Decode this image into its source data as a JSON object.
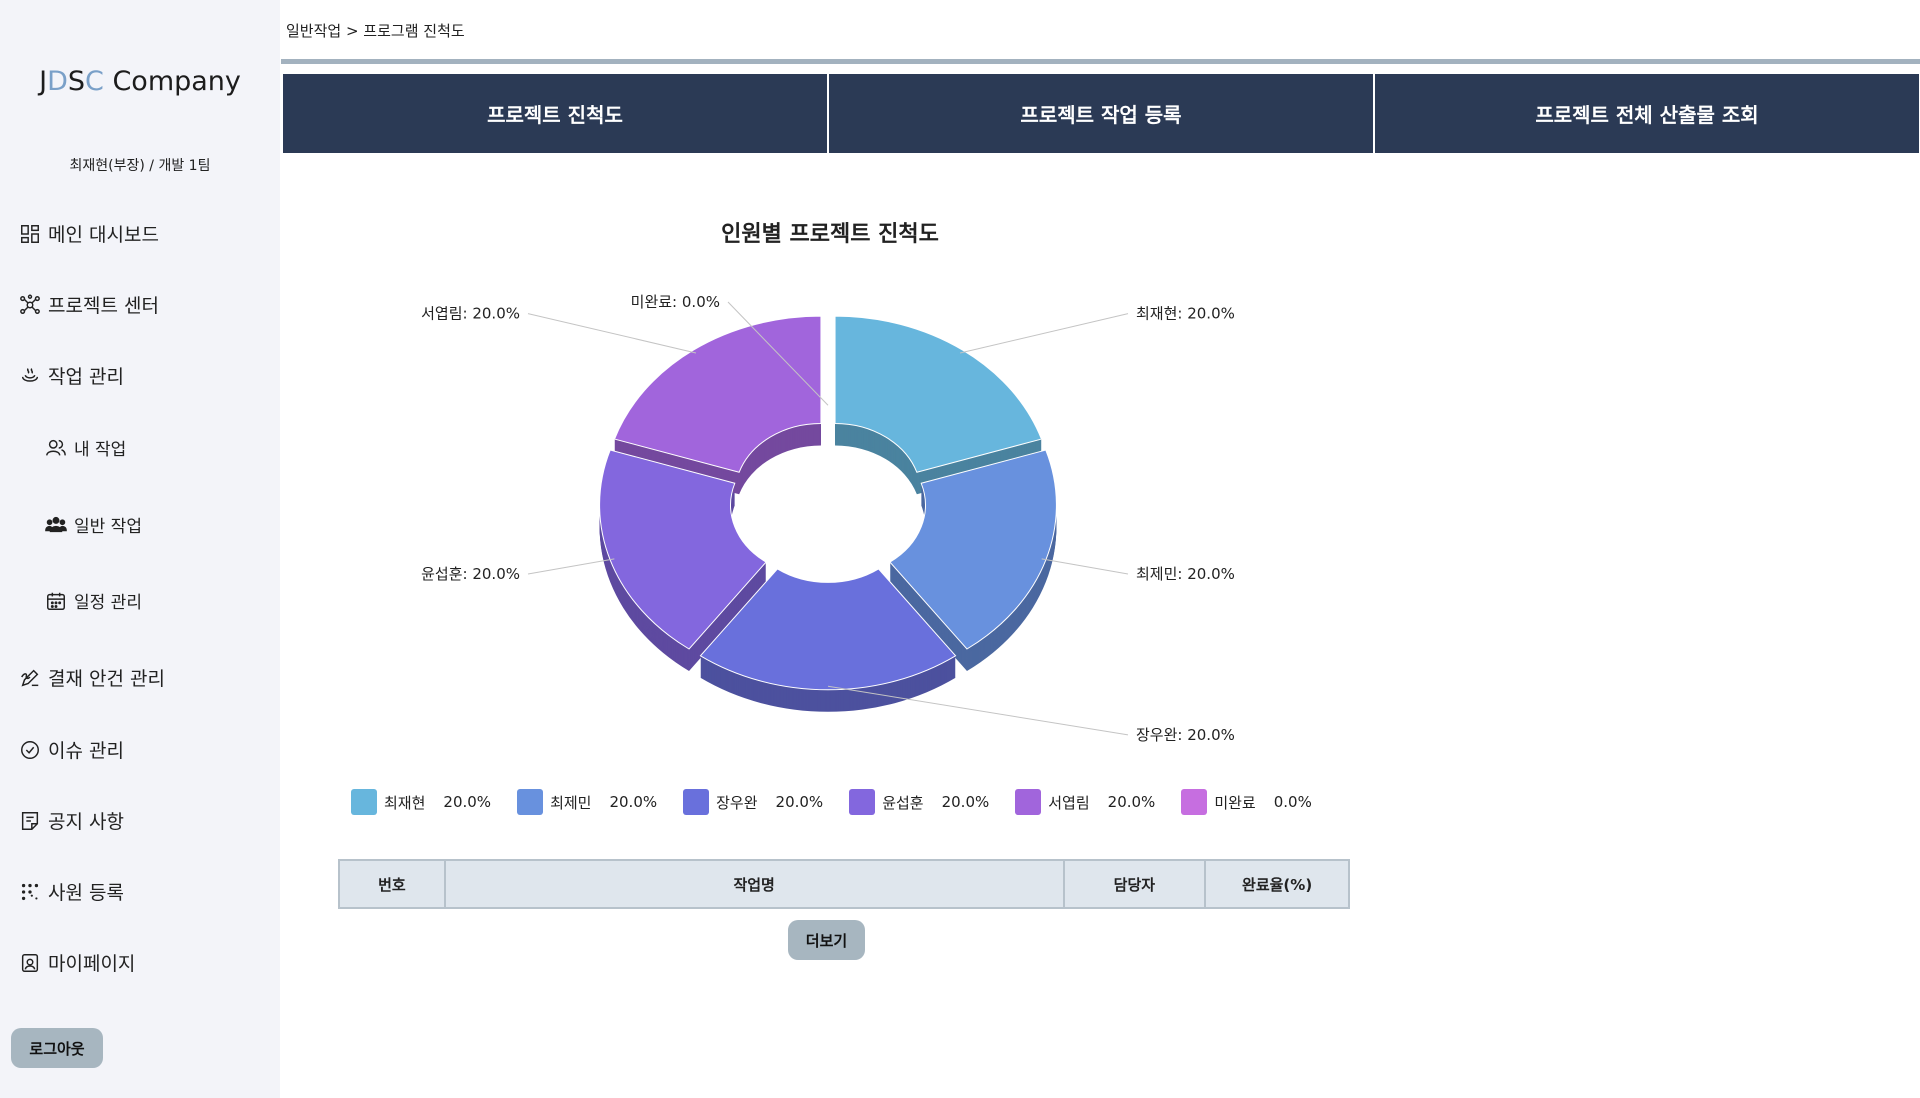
{
  "corner_mark": "-",
  "sidebar": {
    "logo": {
      "j": "J",
      "d": "D",
      "s": "S",
      "c": "C",
      "rest": " Company"
    },
    "user_line": "최재현(부장) / 개발 1팀",
    "items": [
      {
        "label": "메인 대시보드",
        "icon": "dashboard-icon"
      },
      {
        "label": "프로젝트 센터",
        "icon": "network-icon"
      },
      {
        "label": "작업 관리",
        "icon": "task-icon"
      },
      {
        "label": "내 작업",
        "icon": "users-icon"
      },
      {
        "label": "일반 작업",
        "icon": "group-icon"
      },
      {
        "label": "일정 관리",
        "icon": "calendar-icon"
      },
      {
        "label": "결재 안건 관리",
        "icon": "signature-icon"
      },
      {
        "label": "이슈 관리",
        "icon": "check-circle-icon"
      },
      {
        "label": "공지 사항",
        "icon": "note-icon"
      },
      {
        "label": "사원 등록",
        "icon": "dots-grid-icon"
      },
      {
        "label": "마이페이지",
        "icon": "id-badge-icon"
      }
    ],
    "logout_label": "로그아웃"
  },
  "breadcrumb": "일반작업 > 프로그램 진척도",
  "tabs": [
    {
      "label": "프로젝트 진척도"
    },
    {
      "label": "프로젝트 작업 등록"
    },
    {
      "label": "프로젝트 전체 산출물 조회"
    }
  ],
  "chart_data": {
    "type": "pie",
    "variant": "3d-donut",
    "title": "인원별 프로젝트 진척도",
    "categories": [
      "최재현",
      "최제민",
      "장우완",
      "윤섭훈",
      "서엽림",
      "미완료"
    ],
    "values": [
      20.0,
      20.0,
      20.0,
      20.0,
      20.0,
      0.0
    ],
    "display_values": [
      "20.0%",
      "20.0%",
      "20.0%",
      "20.0%",
      "20.0%",
      "0.0%"
    ],
    "colors": [
      "#67b6dd",
      "#6891de",
      "#6970dc",
      "#8367de",
      "#a165dc",
      "#c66ee0"
    ],
    "legend_position": "bottom"
  },
  "table": {
    "headers": [
      "번호",
      "작업명",
      "담당자",
      "완료율(%)"
    ],
    "rows": []
  },
  "more_label": "더보기"
}
